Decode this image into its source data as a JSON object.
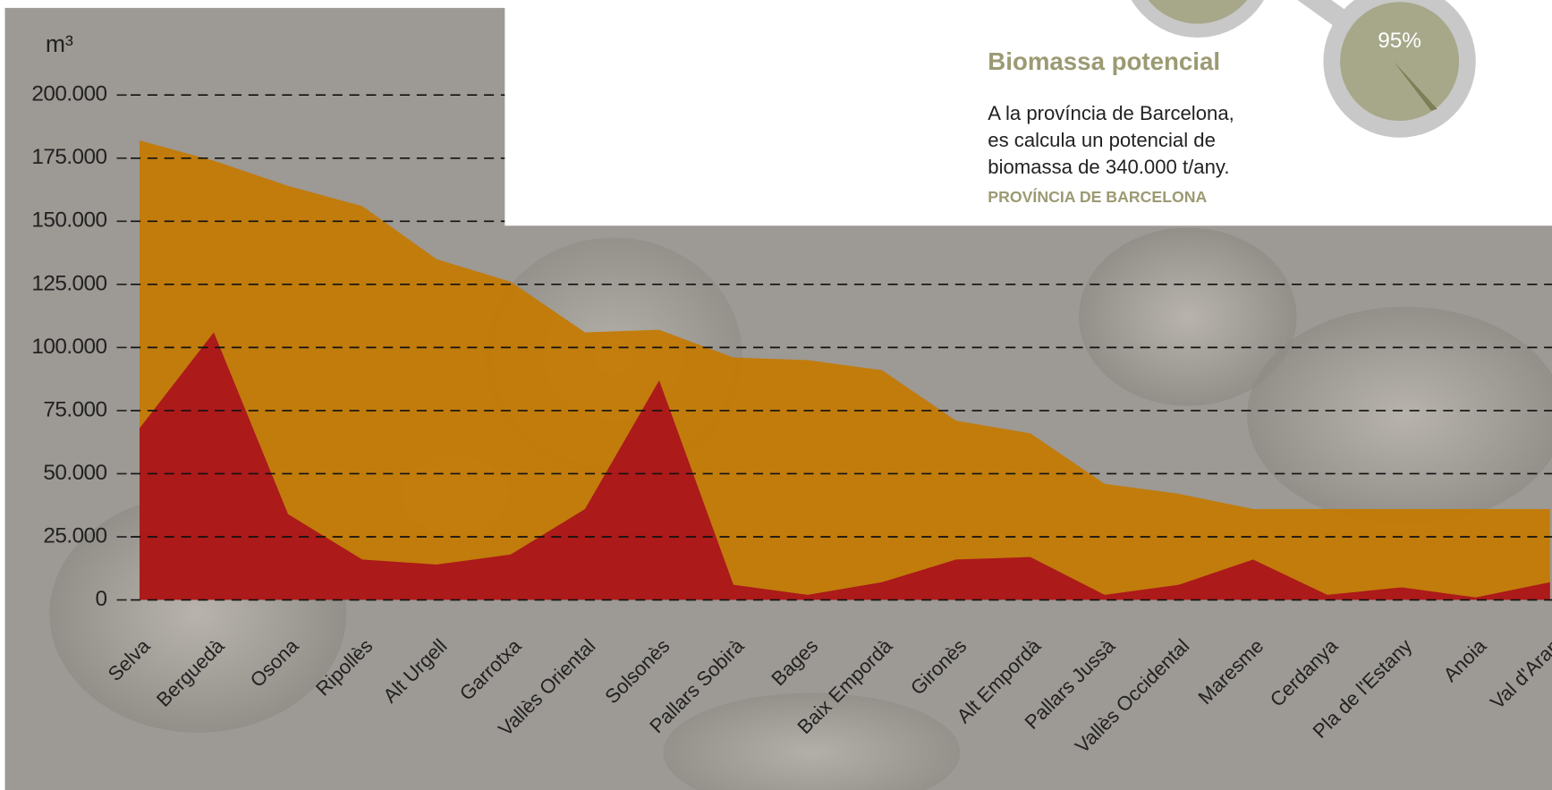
{
  "chart_data": {
    "type": "area",
    "y_label": "m³",
    "categories": [
      "Selva",
      "Berguedà",
      "Osona",
      "Ripollès",
      "Alt Urgell",
      "Garrotxa",
      "Vallès Oriental",
      "Solsonès",
      "Pallars Sobirà",
      "Bages",
      "Baix Empordà",
      "Gironès",
      "Alt Empordà",
      "Pallars Jussà",
      "Vallès Occidental",
      "Maresme",
      "Cerdanya",
      "Pla de l'Estany",
      "Anoia",
      "Val d'Aran"
    ],
    "series": [
      {
        "color": "#c47a00",
        "values": [
          182000,
          174000,
          164000,
          156000,
          135000,
          126000,
          106000,
          107000,
          96000,
          95000,
          91000,
          71000,
          66000,
          46000,
          42000,
          36000,
          36000,
          36000,
          36000,
          36000
        ]
      },
      {
        "color": "#a80c1c",
        "values": [
          68000,
          106000,
          34000,
          16000,
          14000,
          18000,
          36000,
          87000,
          6000,
          2000,
          7000,
          16000,
          17000,
          2000,
          6000,
          16000,
          2000,
          5000,
          1000,
          7000
        ]
      }
    ],
    "ylim": [
      0,
      200000
    ],
    "yticks": [
      0,
      {
        "value": 25000,
        "label": "25.000"
      },
      {
        "value": 50000,
        "label": "50.000"
      },
      {
        "value": 75000,
        "label": "75.000"
      },
      {
        "value": 100000,
        "label": "100.000"
      },
      {
        "value": 125000,
        "label": "125.000"
      },
      {
        "value": 150000,
        "label": "150.000"
      },
      {
        "value": 175000,
        "label": "175.000"
      },
      {
        "value": 200000,
        "label": "200.000"
      }
    ],
    "grid": true
  },
  "infobox": {
    "title": "Biomassa potencial",
    "text": [
      "A la província de Barcelona,",
      "es calcula un potencial de",
      "biomassa de 340.000 t/any."
    ],
    "source": "PROVÍNCIA DE BARCELONA",
    "gauge": {
      "value": 95,
      "label": "95%"
    }
  }
}
